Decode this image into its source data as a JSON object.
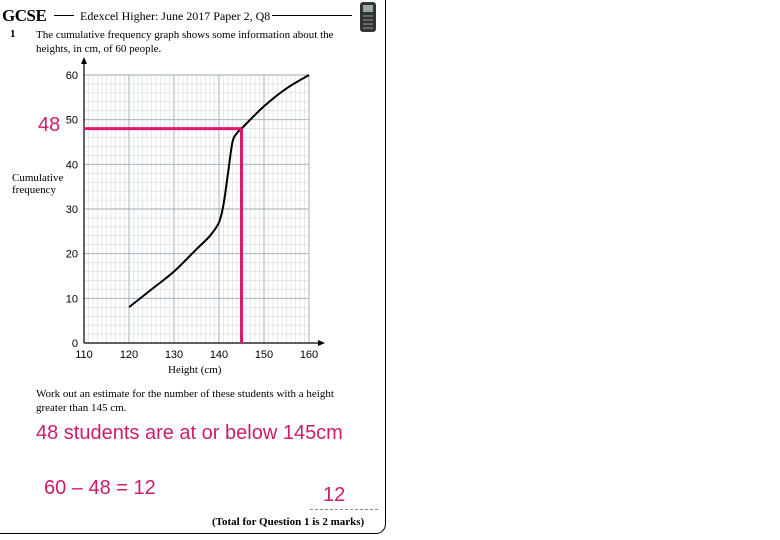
{
  "header": {
    "brand": "GCSE",
    "subtitle": "Edexcel Higher: June 2017 Paper 2, Q8"
  },
  "question": {
    "number": "1",
    "text": "The cumulative frequency graph shows some information about the heights, in cm, of 60 people.",
    "prompt": "Work out an estimate for the number of these students with a height greater than 145 cm.",
    "total": "(Total for Question 1 is 2 marks)"
  },
  "working": {
    "read_value": "48",
    "statement": "48 students are at or below 145cm",
    "calculation": "60 – 48 = 12",
    "answer": "12",
    "color": "#cc1c6a"
  },
  "chart_data": {
    "type": "line",
    "xlabel": "Height (cm)",
    "ylabel": "Cumulative frequency",
    "xlim": [
      110,
      160
    ],
    "ylim": [
      0,
      60
    ],
    "x_ticks": [
      "110",
      "120",
      "130",
      "140",
      "150",
      "160"
    ],
    "y_ticks": [
      "0",
      "10",
      "20",
      "30",
      "40",
      "50",
      "60"
    ],
    "grid": true,
    "series": [
      {
        "x": [
          120,
          125,
          130,
          135,
          138,
          140,
          141,
          142,
          143,
          144,
          145,
          150,
          155,
          160
        ],
        "y": [
          8,
          12,
          16,
          21,
          24,
          27,
          31,
          38,
          45,
          47,
          48,
          53,
          57,
          60
        ]
      }
    ],
    "annotations": [
      {
        "type": "reading",
        "x": 145,
        "y": 48,
        "color": "#e0186a"
      }
    ]
  }
}
